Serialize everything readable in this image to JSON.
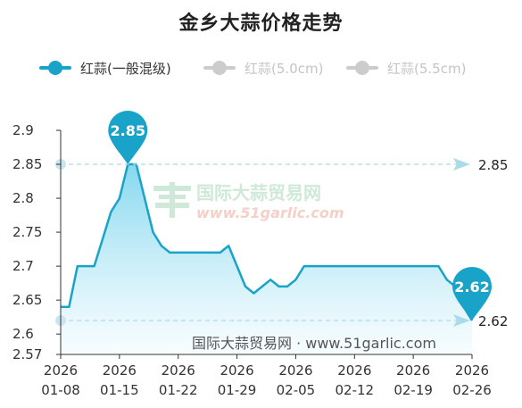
{
  "title": "金乡大蒜价格走势",
  "legend": [
    {
      "label": "红蒜(一般混级)",
      "color": "#1aa3c8",
      "active": true
    },
    {
      "label": "红蒜(5.0cm)",
      "color": "#cccccc",
      "active": false
    },
    {
      "label": "红蒜(5.5cm)",
      "color": "#cccccc",
      "active": false
    }
  ],
  "watermark": {
    "main": "国际大蒜贸易网",
    "sub": "www.51garlic.com"
  },
  "source": "国际大蒜贸易网 · www.51garlic.com",
  "colors": {
    "line": "#1aa3c8",
    "area_top": "#7fd6ee",
    "area_bottom": "#f2fbfe",
    "markline": "#a9dce8"
  },
  "chart_data": {
    "type": "area",
    "series": [
      {
        "name": "红蒜(一般混级)",
        "points": [
          [
            "2026-01-08",
            2.64
          ],
          [
            "2026-01-09",
            2.64
          ],
          [
            "2026-01-10",
            2.7
          ],
          [
            "2026-01-11",
            2.7
          ],
          [
            "2026-01-12",
            2.7
          ],
          [
            "2026-01-13",
            2.74
          ],
          [
            "2026-01-14",
            2.78
          ],
          [
            "2026-01-15",
            2.8
          ],
          [
            "2026-01-16",
            2.85
          ],
          [
            "2026-01-17",
            2.85
          ],
          [
            "2026-01-18",
            2.8
          ],
          [
            "2026-01-19",
            2.75
          ],
          [
            "2026-01-20",
            2.73
          ],
          [
            "2026-01-21",
            2.72
          ],
          [
            "2026-01-22",
            2.72
          ],
          [
            "2026-01-23",
            2.72
          ],
          [
            "2026-01-24",
            2.72
          ],
          [
            "2026-01-25",
            2.72
          ],
          [
            "2026-01-26",
            2.72
          ],
          [
            "2026-01-27",
            2.72
          ],
          [
            "2026-01-28",
            2.73
          ],
          [
            "2026-01-29",
            2.7
          ],
          [
            "2026-01-30",
            2.67
          ],
          [
            "2026-01-31",
            2.66
          ],
          [
            "2026-02-01",
            2.67
          ],
          [
            "2026-02-02",
            2.68
          ],
          [
            "2026-02-03",
            2.67
          ],
          [
            "2026-02-04",
            2.67
          ],
          [
            "2026-02-05",
            2.68
          ],
          [
            "2026-02-06",
            2.7
          ],
          [
            "2026-02-07",
            2.7
          ],
          [
            "2026-02-08",
            2.7
          ],
          [
            "2026-02-09",
            2.7
          ],
          [
            "2026-02-10",
            2.7
          ],
          [
            "2026-02-11",
            2.7
          ],
          [
            "2026-02-12",
            2.7
          ],
          [
            "2026-02-13",
            2.7
          ],
          [
            "2026-02-14",
            2.7
          ],
          [
            "2026-02-15",
            2.7
          ],
          [
            "2026-02-16",
            2.7
          ],
          [
            "2026-02-17",
            2.7
          ],
          [
            "2026-02-18",
            2.7
          ],
          [
            "2026-02-19",
            2.7
          ],
          [
            "2026-02-20",
            2.7
          ],
          [
            "2026-02-21",
            2.7
          ],
          [
            "2026-02-22",
            2.7
          ],
          [
            "2026-02-23",
            2.68
          ],
          [
            "2026-02-24",
            2.67
          ],
          [
            "2026-02-25",
            2.64
          ],
          [
            "2026-02-26",
            2.62
          ]
        ]
      }
    ],
    "ylim": [
      2.57,
      2.9
    ],
    "yticks": [
      "2.9",
      "2.85",
      "2.8",
      "2.75",
      "2.7",
      "2.65",
      "2.6",
      "2.57"
    ],
    "xticks": [
      {
        "year": "2026",
        "md": "01-08",
        "date": "2026-01-08"
      },
      {
        "year": "2026",
        "md": "01-15",
        "date": "2026-01-15"
      },
      {
        "year": "2026",
        "md": "01-22",
        "date": "2026-01-22"
      },
      {
        "year": "2026",
        "md": "01-29",
        "date": "2026-01-29"
      },
      {
        "year": "2026",
        "md": "02-05",
        "date": "2026-02-05"
      },
      {
        "year": "2026",
        "md": "02-12",
        "date": "2026-02-12"
      },
      {
        "year": "2026",
        "md": "02-19",
        "date": "2026-02-19"
      },
      {
        "year": "2026",
        "md": "02-26",
        "date": "2026-02-26"
      }
    ],
    "markpoints": [
      {
        "label": "2.85",
        "date": "2026-01-16",
        "value": 2.85
      },
      {
        "label": "2.62",
        "date": "2026-02-26",
        "value": 2.62
      }
    ],
    "marklines": [
      {
        "label": "2.85",
        "value": 2.85
      },
      {
        "label": "2.62",
        "value": 2.62
      }
    ],
    "grid": false,
    "legend_position": "top-left"
  }
}
